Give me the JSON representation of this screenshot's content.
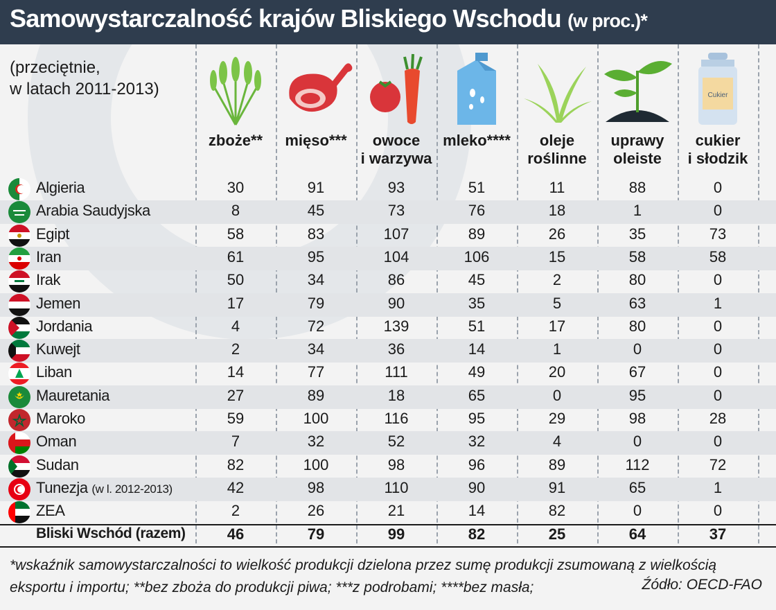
{
  "title": "Samowystarczalność krajów Bliskiego Wschodu",
  "title_suffix": "(w proc.)*",
  "subtitle_line1": "(przeciętnie,",
  "subtitle_line2": "w latach 2011-2013)",
  "columns": [
    {
      "line1": "zboże**",
      "line2": "",
      "icon": "wheat-icon"
    },
    {
      "line1": "mięso***",
      "line2": "",
      "icon": "ham-icon"
    },
    {
      "line1": "owoce",
      "line2": "i warzywa",
      "icon": "tomato-carrot-icon"
    },
    {
      "line1": "mleko****",
      "line2": "",
      "icon": "milk-carton-icon"
    },
    {
      "line1": "oleje",
      "line2": "roślinne",
      "icon": "grass-plant-icon"
    },
    {
      "line1": "uprawy",
      "line2": "oleiste",
      "icon": "sprout-icon"
    },
    {
      "line1": "cukier",
      "line2": "i słodzik",
      "icon": "sugar-jar-icon"
    }
  ],
  "sugar_jar_label": "Cukier",
  "rows": [
    {
      "country": "Algieria",
      "note": "",
      "flag": "algeria-flag-icon",
      "values": [
        "30",
        "91",
        "93",
        "51",
        "11",
        "88",
        "0"
      ]
    },
    {
      "country": "Arabia Saudyjska",
      "note": "",
      "flag": "saudi-arabia-flag-icon",
      "values": [
        "8",
        "45",
        "73",
        "76",
        "18",
        "1",
        "0"
      ]
    },
    {
      "country": "Egipt",
      "note": "",
      "flag": "egypt-flag-icon",
      "values": [
        "58",
        "83",
        "107",
        "89",
        "26",
        "35",
        "73"
      ]
    },
    {
      "country": "Iran",
      "note": "",
      "flag": "iran-flag-icon",
      "values": [
        "61",
        "95",
        "104",
        "106",
        "15",
        "58",
        "58"
      ]
    },
    {
      "country": "Irak",
      "note": "",
      "flag": "iraq-flag-icon",
      "values": [
        "50",
        "34",
        "86",
        "45",
        "2",
        "80",
        "0"
      ]
    },
    {
      "country": "Jemen",
      "note": "",
      "flag": "yemen-flag-icon",
      "values": [
        "17",
        "79",
        "90",
        "35",
        "5",
        "63",
        "1"
      ]
    },
    {
      "country": "Jordania",
      "note": "",
      "flag": "jordan-flag-icon",
      "values": [
        "4",
        "72",
        "139",
        "51",
        "17",
        "80",
        "0"
      ]
    },
    {
      "country": "Kuwejt",
      "note": "",
      "flag": "kuwait-flag-icon",
      "values": [
        "2",
        "34",
        "36",
        "14",
        "1",
        "0",
        "0"
      ]
    },
    {
      "country": "Liban",
      "note": "",
      "flag": "lebanon-flag-icon",
      "values": [
        "14",
        "77",
        "111",
        "49",
        "20",
        "67",
        "0"
      ]
    },
    {
      "country": "Mauretania",
      "note": "",
      "flag": "mauritania-flag-icon",
      "values": [
        "27",
        "89",
        "18",
        "65",
        "0",
        "95",
        "0"
      ]
    },
    {
      "country": "Maroko",
      "note": "",
      "flag": "morocco-flag-icon",
      "values": [
        "59",
        "100",
        "116",
        "95",
        "29",
        "98",
        "28"
      ]
    },
    {
      "country": "Oman",
      "note": "",
      "flag": "oman-flag-icon",
      "values": [
        "7",
        "32",
        "52",
        "32",
        "4",
        "0",
        "0"
      ]
    },
    {
      "country": "Sudan",
      "note": "",
      "flag": "sudan-flag-icon",
      "values": [
        "82",
        "100",
        "98",
        "96",
        "89",
        "112",
        "72"
      ]
    },
    {
      "country": "Tunezja",
      "note": "(w l. 2012-2013)",
      "flag": "tunisia-flag-icon",
      "values": [
        "42",
        "98",
        "110",
        "90",
        "91",
        "65",
        "1"
      ]
    },
    {
      "country": "ZEA",
      "note": "",
      "flag": "uae-flag-icon",
      "values": [
        "2",
        "26",
        "21",
        "14",
        "82",
        "0",
        "0"
      ]
    }
  ],
  "total": {
    "country": "Bliski Wschód (razem)",
    "values": [
      "46",
      "79",
      "99",
      "82",
      "25",
      "64",
      "37"
    ]
  },
  "footnote_line1": "*wskaźnik samowystarczalności to wielkość produkcji dzielona przez sumę produkcji zsumowaną z wielkością",
  "footnote_line2": "eksportu i importu; **bez zboża do produkcji piwa; ***z podrobami; ****bez masła;",
  "source": "Źódło: OECD-FAO",
  "colors": {
    "title_bg": "#2f3d4e",
    "row_alt": "#e2e4e7",
    "background": "#f3f3f3",
    "food_red": "#d9353a",
    "milk_blue": "#6cb6e8",
    "plant_green": "#6ab63c"
  }
}
